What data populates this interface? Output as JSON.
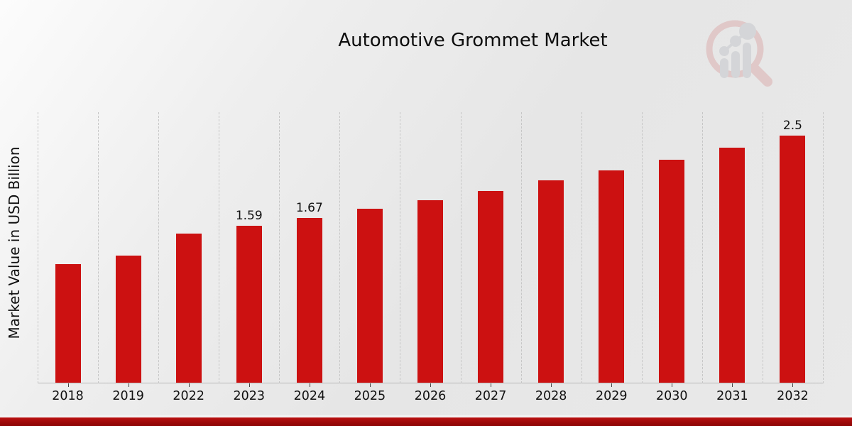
{
  "chart_data": {
    "type": "bar",
    "title": "Automotive Grommet Market",
    "ylabel": "Market Value in USD Billion",
    "categories": [
      "2018",
      "2019",
      "2022",
      "2023",
      "2024",
      "2025",
      "2026",
      "2027",
      "2028",
      "2029",
      "2030",
      "2031",
      "2032"
    ],
    "values": [
      1.2,
      1.29,
      1.51,
      1.59,
      1.67,
      1.76,
      1.85,
      1.94,
      2.05,
      2.15,
      2.26,
      2.38,
      2.5
    ],
    "data_labels": {
      "2023": "1.59",
      "2024": "1.67",
      "2032": "2.5"
    },
    "ylim": [
      0,
      2.76
    ],
    "grid": "vertical-dashed",
    "legend": "none",
    "bar_color": "#cc1111",
    "accent_band_color": "#a30b0b",
    "watermark": "magnifier-bar-chart-logo"
  }
}
